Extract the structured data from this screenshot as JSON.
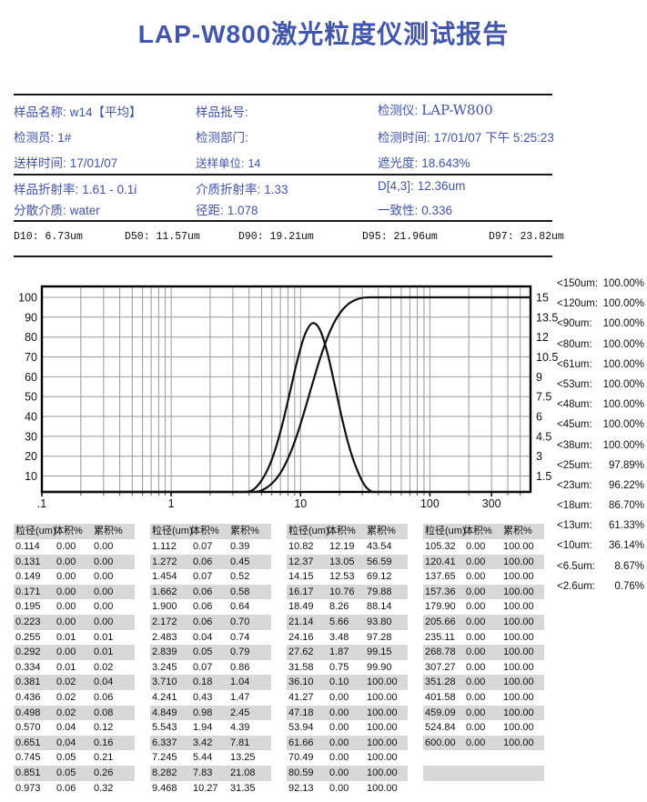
{
  "title": "LAP-W800激光粒度仪测试报告",
  "colors": {
    "accent": "#4153ab",
    "stripe": "#d8d8d8",
    "grid": "#999999",
    "curve": "#111111"
  },
  "info1": [
    {
      "label": "样品名称:",
      "value": "w14【平均】"
    },
    {
      "label": "样品批号:",
      "value": ""
    },
    {
      "label": "检测仪:",
      "value": "LAP-W800"
    },
    {
      "label": "检测员:",
      "value": "1#"
    },
    {
      "label": "检测部门:",
      "value": ""
    },
    {
      "label": "检测时间:",
      "value": "17/01/07 下午 5:25:23"
    },
    {
      "label": "送样时间:",
      "value": "17/01/07"
    },
    {
      "label": "送样单位:",
      "value": "14"
    },
    {
      "label": "遮光度:",
      "value": "18.643%"
    }
  ],
  "info2": [
    {
      "label": "样品折射率:",
      "value": "1.61 - 0.1i"
    },
    {
      "label": "介质折射率:",
      "value": "1.33"
    },
    {
      "label": "D[4,3]:",
      "value": "12.36um"
    },
    {
      "label": "分散介质:",
      "value": "water"
    },
    {
      "label": "径距:",
      "value": "1.078"
    },
    {
      "label": "一致性:",
      "value": "0.336"
    }
  ],
  "d_values": [
    "D10: 6.73um",
    "D50: 11.57um",
    "D90: 19.21um",
    "D95: 21.96um",
    "D97: 23.82um"
  ],
  "percentiles": [
    {
      "label": "<150um:",
      "value": "100.00%"
    },
    {
      "label": "<120um:",
      "value": "100.00%"
    },
    {
      "label": "<90um:",
      "value": "100.00%"
    },
    {
      "label": "<80um:",
      "value": "100.00%"
    },
    {
      "label": "<61um:",
      "value": "100.00%"
    },
    {
      "label": "<53um:",
      "value": "100.00%"
    },
    {
      "label": "<48um:",
      "value": "100.00%"
    },
    {
      "label": "<45um:",
      "value": "100.00%"
    },
    {
      "label": "<38um:",
      "value": "100.00%"
    },
    {
      "label": "<25um:",
      "value": "97.89%"
    },
    {
      "label": "<23um:",
      "value": "96.22%"
    },
    {
      "label": "<18um:",
      "value": "86.70%"
    },
    {
      "label": "<13um:",
      "value": "61.33%"
    },
    {
      "label": "<10um:",
      "value": "36.14%"
    },
    {
      "label": "<6.5um:",
      "value": "8.67%"
    },
    {
      "label": "<2.6um:",
      "value": "0.76%"
    }
  ],
  "chart_data": {
    "type": "line",
    "x_scale": "log",
    "x_range": [
      0.1,
      600
    ],
    "x_tick_labels": [
      {
        "v": 0.1,
        "t": ".1"
      },
      {
        "v": 1,
        "t": "1"
      },
      {
        "v": 10,
        "t": "10"
      },
      {
        "v": 100,
        "t": "100"
      },
      {
        "v": 300,
        "t": "300"
      }
    ],
    "left_axis": {
      "label": "累积%",
      "ticks": [
        10,
        20,
        30,
        40,
        50,
        60,
        70,
        80,
        90,
        100
      ],
      "min": 2,
      "max": 105.5
    },
    "right_axis": {
      "label": "体积%",
      "ticks": [
        1.5,
        3,
        4.5,
        6,
        7.5,
        9,
        10.5,
        12,
        13.5,
        15
      ],
      "full_scale": 15
    },
    "grid": true,
    "x": [
      0.114,
      0.131,
      0.149,
      0.171,
      0.195,
      0.223,
      0.255,
      0.292,
      0.334,
      0.381,
      0.436,
      0.498,
      0.57,
      0.651,
      0.745,
      0.851,
      0.973,
      1.112,
      1.272,
      1.454,
      1.662,
      1.9,
      2.172,
      2.483,
      2.839,
      3.245,
      3.71,
      4.241,
      4.849,
      5.543,
      6.337,
      7.245,
      8.282,
      9.468,
      10.82,
      12.37,
      14.15,
      16.17,
      18.49,
      21.14,
      24.16,
      27.62,
      31.58,
      36.1,
      41.27,
      47.18,
      53.94,
      61.66,
      70.49,
      80.59,
      92.13,
      105.32,
      120.41,
      137.65,
      157.36,
      179.9,
      205.66,
      235.11,
      268.78,
      307.27,
      351.28,
      401.58,
      459.09,
      524.84,
      600.0
    ],
    "series": [
      {
        "name": "累积%",
        "axis": "left",
        "values": [
          0,
          0,
          0,
          0,
          0,
          0,
          0.01,
          0.01,
          0.02,
          0.04,
          0.06,
          0.08,
          0.12,
          0.16,
          0.21,
          0.26,
          0.32,
          0.39,
          0.45,
          0.52,
          0.58,
          0.64,
          0.7,
          0.74,
          0.79,
          0.86,
          1.04,
          1.47,
          2.45,
          4.39,
          7.81,
          13.25,
          21.08,
          31.35,
          43.54,
          56.59,
          69.12,
          79.88,
          88.14,
          93.8,
          97.28,
          99.15,
          99.9,
          100,
          100,
          100,
          100,
          100,
          100,
          100,
          100,
          100,
          100,
          100,
          100,
          100,
          100,
          100,
          100,
          100,
          100,
          100,
          100,
          100,
          100
        ]
      },
      {
        "name": "体积%",
        "axis": "right",
        "values": [
          0,
          0,
          0,
          0,
          0,
          0,
          0.01,
          0,
          0.01,
          0.02,
          0.02,
          0.02,
          0.04,
          0.04,
          0.05,
          0.05,
          0.06,
          0.07,
          0.06,
          0.07,
          0.06,
          0.06,
          0.06,
          0.04,
          0.05,
          0.07,
          0.18,
          0.43,
          0.98,
          1.94,
          3.42,
          5.44,
          7.83,
          10.27,
          12.19,
          13.05,
          12.53,
          10.76,
          8.26,
          5.66,
          3.48,
          1.87,
          0.75,
          0.1,
          0,
          0,
          0,
          0,
          0,
          0,
          0,
          0,
          0,
          0,
          0,
          0,
          0,
          0,
          0,
          0,
          0,
          0,
          0,
          0,
          0
        ]
      }
    ]
  },
  "tables": {
    "headers": [
      "粒径(um)",
      "体积%",
      "累积%"
    ],
    "groups": [
      [
        [
          "0.114",
          "0.00",
          "0.00"
        ],
        [
          "0.131",
          "0.00",
          "0.00"
        ],
        [
          "0.149",
          "0.00",
          "0.00"
        ],
        [
          "0.171",
          "0.00",
          "0.00"
        ],
        [
          "0.195",
          "0.00",
          "0.00"
        ],
        [
          "0.223",
          "0.00",
          "0.00"
        ],
        [
          "0.255",
          "0.01",
          "0.01"
        ],
        [
          "0.292",
          "0.00",
          "0.01"
        ],
        [
          "0.334",
          "0.01",
          "0.02"
        ],
        [
          "0.381",
          "0.02",
          "0.04"
        ],
        [
          "0.436",
          "0.02",
          "0.06"
        ],
        [
          "0.498",
          "0.02",
          "0.08"
        ],
        [
          "0.570",
          "0.04",
          "0.12"
        ],
        [
          "0.651",
          "0.04",
          "0.16"
        ],
        [
          "0.745",
          "0.05",
          "0.21"
        ],
        [
          "0.851",
          "0.05",
          "0.26"
        ],
        [
          "0.973",
          "0.06",
          "0.32"
        ]
      ],
      [
        [
          "1.112",
          "0.07",
          "0.39"
        ],
        [
          "1.272",
          "0.06",
          "0.45"
        ],
        [
          "1.454",
          "0.07",
          "0.52"
        ],
        [
          "1.662",
          "0.06",
          "0.58"
        ],
        [
          "1.900",
          "0.06",
          "0.64"
        ],
        [
          "2.172",
          "0.06",
          "0.70"
        ],
        [
          "2.483",
          "0.04",
          "0.74"
        ],
        [
          "2.839",
          "0.05",
          "0.79"
        ],
        [
          "3.245",
          "0.07",
          "0.86"
        ],
        [
          "3.710",
          "0.18",
          "1.04"
        ],
        [
          "4.241",
          "0.43",
          "1.47"
        ],
        [
          "4.849",
          "0.98",
          "2.45"
        ],
        [
          "5.543",
          "1.94",
          "4.39"
        ],
        [
          "6.337",
          "3.42",
          "7.81"
        ],
        [
          "7.245",
          "5.44",
          "13.25"
        ],
        [
          "8.282",
          "7.83",
          "21.08"
        ],
        [
          "9.468",
          "10.27",
          "31.35"
        ]
      ],
      [
        [
          "10.82",
          "12.19",
          "43.54"
        ],
        [
          "12.37",
          "13.05",
          "56.59"
        ],
        [
          "14.15",
          "12.53",
          "69.12"
        ],
        [
          "16.17",
          "10.76",
          "79.88"
        ],
        [
          "18.49",
          "8.26",
          "88.14"
        ],
        [
          "21.14",
          "5.66",
          "93.80"
        ],
        [
          "24.16",
          "3.48",
          "97.28"
        ],
        [
          "27.62",
          "1.87",
          "99.15"
        ],
        [
          "31.58",
          "0.75",
          "99.90"
        ],
        [
          "36.10",
          "0.10",
          "100.00"
        ],
        [
          "41.27",
          "0.00",
          "100.00"
        ],
        [
          "47.18",
          "0.00",
          "100.00"
        ],
        [
          "53.94",
          "0.00",
          "100.00"
        ],
        [
          "61.66",
          "0.00",
          "100.00"
        ],
        [
          "70.49",
          "0.00",
          "100.00"
        ],
        [
          "80.59",
          "0.00",
          "100.00"
        ],
        [
          "92.13",
          "0.00",
          "100.00"
        ]
      ],
      [
        [
          "105.32",
          "0.00",
          "100.00"
        ],
        [
          "120.41",
          "0.00",
          "100.00"
        ],
        [
          "137.65",
          "0.00",
          "100.00"
        ],
        [
          "157.36",
          "0.00",
          "100.00"
        ],
        [
          "179.90",
          "0.00",
          "100.00"
        ],
        [
          "205.66",
          "0.00",
          "100.00"
        ],
        [
          "235.11",
          "0.00",
          "100.00"
        ],
        [
          "268.78",
          "0.00",
          "100.00"
        ],
        [
          "307.27",
          "0.00",
          "100.00"
        ],
        [
          "351.28",
          "0.00",
          "100.00"
        ],
        [
          "401.58",
          "0.00",
          "100.00"
        ],
        [
          "459.09",
          "0.00",
          "100.00"
        ],
        [
          "524.84",
          "0.00",
          "100.00"
        ],
        [
          "600.00",
          "0.00",
          "100.00"
        ],
        [
          "",
          "",
          ""
        ],
        [
          "",
          "",
          ""
        ],
        [
          "",
          "",
          ""
        ]
      ]
    ]
  }
}
